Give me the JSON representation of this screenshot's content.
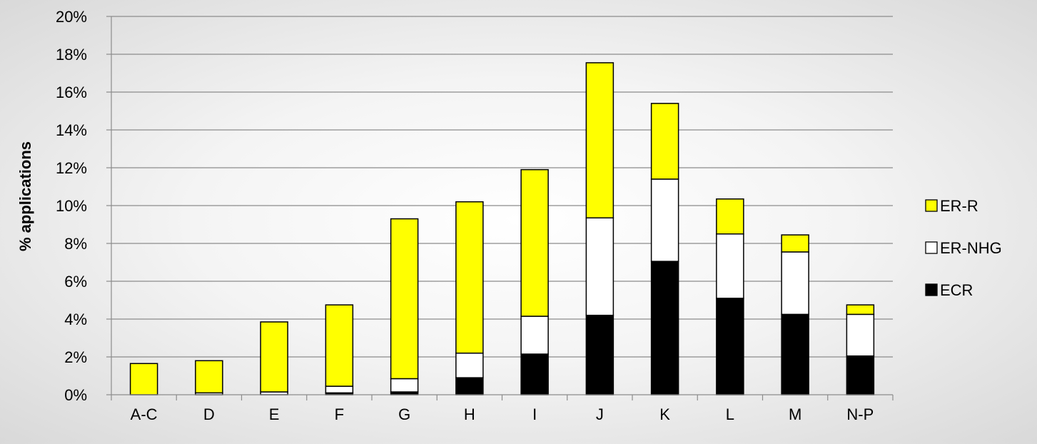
{
  "chart_data": {
    "type": "bar",
    "stacked": true,
    "title": "",
    "xlabel": "",
    "ylabel": "% applications",
    "ylim": [
      0,
      20
    ],
    "yticks": [
      0,
      2,
      4,
      6,
      8,
      10,
      12,
      14,
      16,
      18,
      20
    ],
    "ytick_suffix": "%",
    "grid": true,
    "legend_position": "right",
    "categories": [
      "A-C",
      "D",
      "E",
      "F",
      "G",
      "H",
      "I",
      "J",
      "K",
      "L",
      "M",
      "N-P"
    ],
    "series": [
      {
        "name": "ECR",
        "color": "#000000",
        "values": [
          0,
          0,
          0,
          0.1,
          0.15,
          0.9,
          2.15,
          4.2,
          7.05,
          5.1,
          4.25,
          2.05
        ]
      },
      {
        "name": "ER-NHG",
        "color": "#ffffff",
        "values": [
          0,
          0.1,
          0.15,
          0.35,
          0.7,
          1.3,
          2.0,
          5.15,
          4.35,
          3.4,
          3.3,
          2.2
        ]
      },
      {
        "name": "ER-R",
        "color": "#ffff00",
        "values": [
          1.65,
          1.7,
          3.7,
          4.3,
          8.45,
          8.0,
          7.75,
          8.2,
          4.0,
          1.85,
          0.9,
          0.5
        ]
      }
    ],
    "legend_order": [
      "ER-R",
      "ER-NHG",
      "ECR"
    ]
  }
}
